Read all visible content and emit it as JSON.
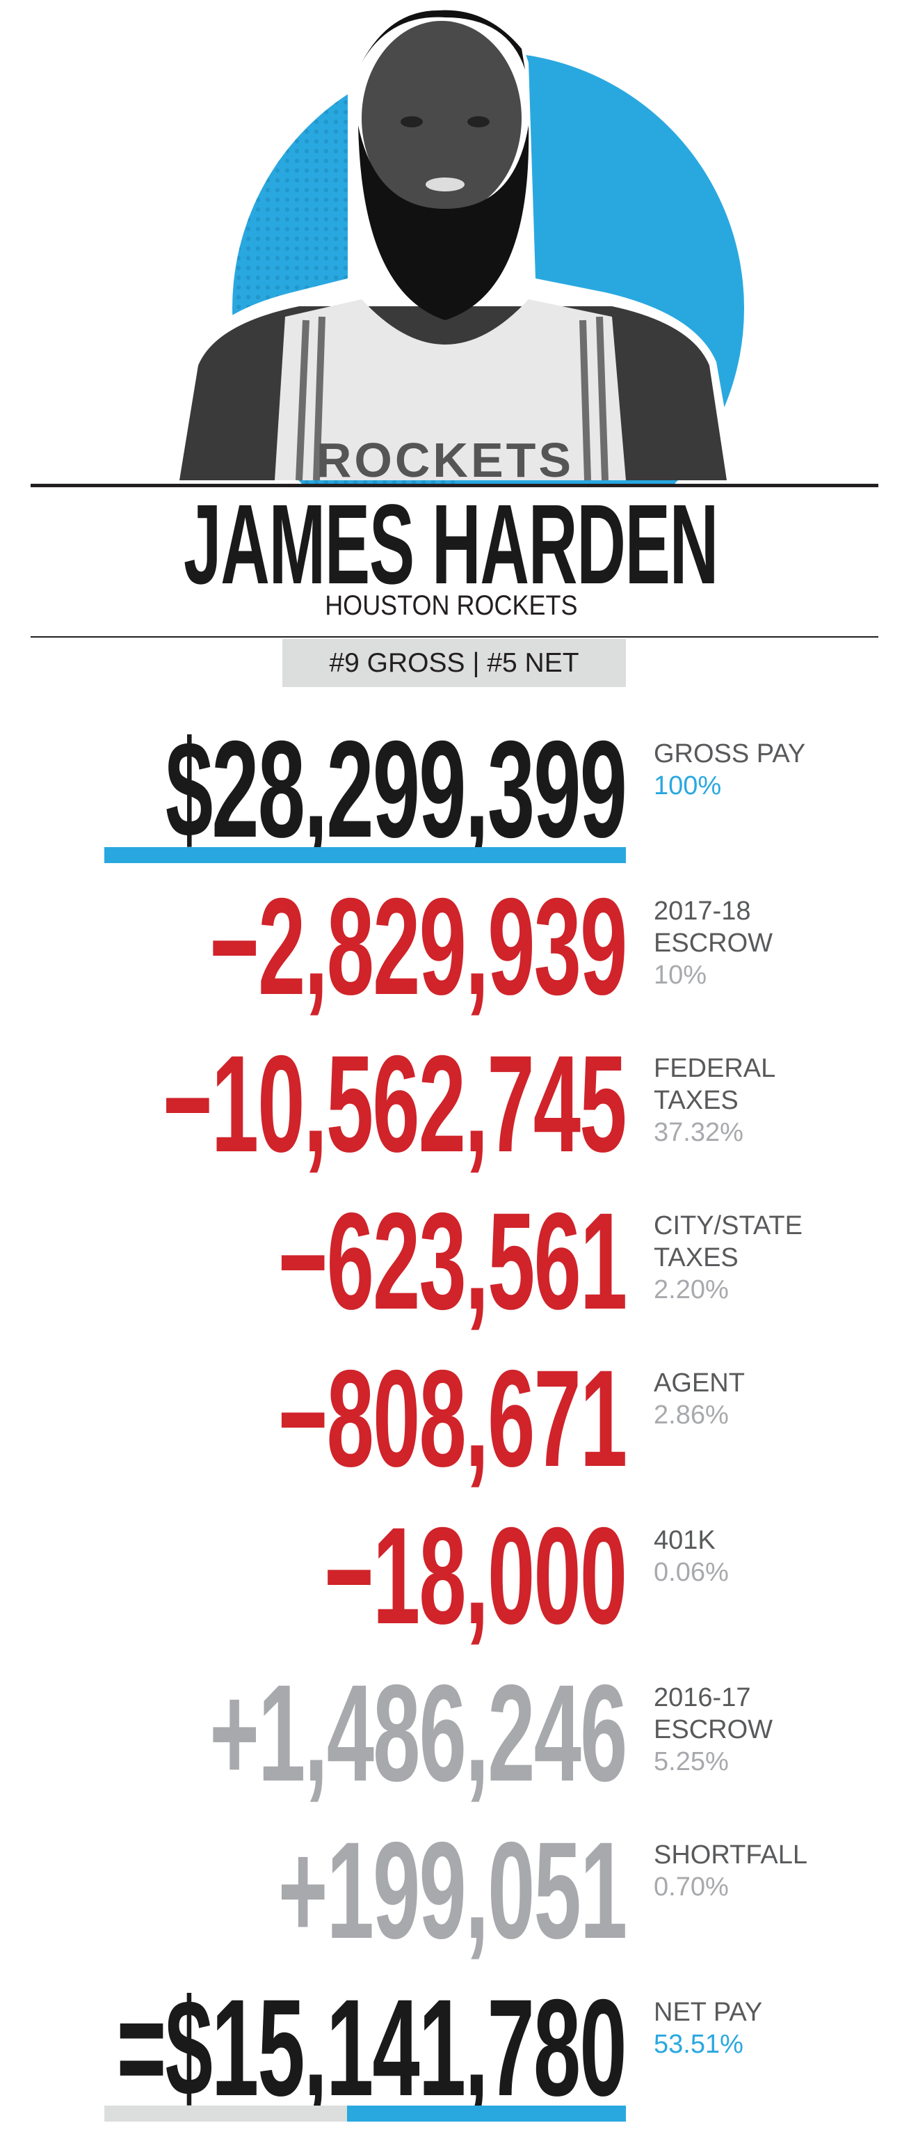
{
  "player": {
    "name": "JAMES HARDEN",
    "team": "HOUSTON ROCKETS",
    "jersey_text": "ROCKETS",
    "rank": "#9 GROSS | #5 NET"
  },
  "colors": {
    "black": "#1a1a1a",
    "red": "#d0232a",
    "gray": "#a7a9ac",
    "blue": "#29a8e0",
    "label": "#58595b",
    "bar_gray": "#dcdddd"
  },
  "rows": [
    {
      "amount": "$28,299,399",
      "label": [
        "GROSS PAY"
      ],
      "pct": "100%",
      "kind": "gross"
    },
    {
      "amount": "−2,829,939",
      "label": [
        "2017-18",
        "ESCROW"
      ],
      "pct": "10%",
      "kind": "deduction"
    },
    {
      "amount": "−10,562,745",
      "label": [
        "FEDERAL",
        "TAXES"
      ],
      "pct": "37.32%",
      "kind": "deduction"
    },
    {
      "amount": "−623,561",
      "label": [
        "CITY/STATE",
        "TAXES"
      ],
      "pct": "2.20%",
      "kind": "deduction"
    },
    {
      "amount": "−808,671",
      "label": [
        "AGENT"
      ],
      "pct": "2.86%",
      "kind": "deduction"
    },
    {
      "amount": "−18,000",
      "label": [
        "401K"
      ],
      "pct": "0.06%",
      "kind": "deduction"
    },
    {
      "amount": "+1,486,246",
      "label": [
        "2016-17",
        "ESCROW"
      ],
      "pct": "5.25%",
      "kind": "addition"
    },
    {
      "amount": "+199,051",
      "label": [
        "SHORTFALL"
      ],
      "pct": "0.70%",
      "kind": "addition"
    },
    {
      "amount": "=$15,141,780",
      "label": [
        "NET PAY"
      ],
      "pct": "53.51%",
      "kind": "net"
    }
  ],
  "bars": {
    "gross_fraction": 1.0,
    "net_fraction": 0.5351
  }
}
